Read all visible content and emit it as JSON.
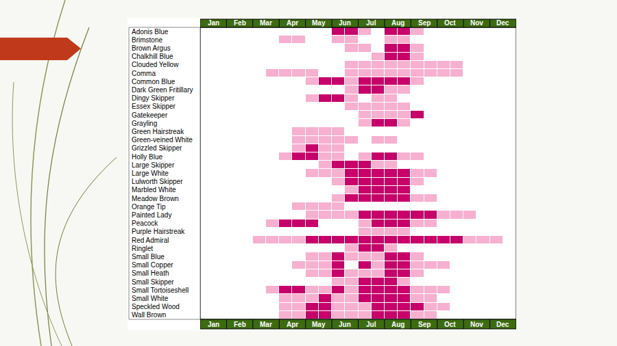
{
  "chart_data": {
    "type": "heatmap",
    "x": [
      "Jan",
      "Feb",
      "Mar",
      "Apr",
      "May",
      "Jun",
      "Jul",
      "Aug",
      "Sep",
      "Oct",
      "Nov",
      "Dec"
    ],
    "categories": [
      "Adonis Blue",
      "Brimstone",
      "Brown Argus",
      "Chalkhill Blue",
      "Clouded Yellow",
      "Comma",
      "Common Blue",
      "Dark Green Fritillary",
      "Dingy Skipper",
      "Essex Skipper",
      "Gatekeeper",
      "Grayling",
      "Green Hairstreak",
      "Green-veined White",
      "Grizzled Skipper",
      "Holly Blue",
      "Large Skipper",
      "Large White",
      "Lulworth Skipper",
      "Marbled White",
      "Meadow Brown",
      "Orange Tip",
      "Painted Lady",
      "Peacock",
      "Purple Hairstreak",
      "Red Admiral",
      "Ringlet",
      "Small Blue",
      "Small Copper",
      "Small Heath",
      "Small Skipper",
      "Small Tortoiseshell",
      "Small White",
      "Speckled Wood",
      "Wall Brown"
    ],
    "cells": [
      [
        0,
        0,
        0,
        0,
        0,
        0,
        0,
        0,
        0,
        0,
        2,
        2,
        1,
        0,
        2,
        2,
        1,
        0,
        0,
        0,
        0,
        0,
        0,
        0
      ],
      [
        0,
        0,
        0,
        0,
        0,
        0,
        1,
        1,
        0,
        0,
        1,
        1,
        0,
        0,
        1,
        1,
        0,
        0,
        0,
        0,
        0,
        0,
        0,
        0
      ],
      [
        0,
        0,
        0,
        0,
        0,
        0,
        0,
        0,
        0,
        0,
        0,
        1,
        1,
        0,
        2,
        2,
        1,
        0,
        0,
        0,
        0,
        0,
        0,
        0
      ],
      [
        0,
        0,
        0,
        0,
        0,
        0,
        0,
        0,
        0,
        0,
        0,
        0,
        0,
        1,
        2,
        2,
        1,
        0,
        0,
        0,
        0,
        0,
        0,
        0
      ],
      [
        0,
        0,
        0,
        0,
        0,
        0,
        0,
        0,
        0,
        0,
        0,
        1,
        1,
        1,
        1,
        1,
        1,
        1,
        1,
        1,
        0,
        0,
        0,
        0
      ],
      [
        0,
        0,
        0,
        0,
        0,
        1,
        1,
        1,
        1,
        0,
        0,
        1,
        1,
        1,
        1,
        1,
        1,
        1,
        1,
        1,
        0,
        0,
        0,
        0
      ],
      [
        0,
        0,
        0,
        0,
        0,
        0,
        0,
        0,
        1,
        2,
        2,
        1,
        2,
        2,
        2,
        2,
        1,
        0,
        0,
        0,
        0,
        0,
        0,
        0
      ],
      [
        0,
        0,
        0,
        0,
        0,
        0,
        0,
        0,
        0,
        0,
        0,
        1,
        2,
        2,
        1,
        1,
        0,
        0,
        0,
        0,
        0,
        0,
        0,
        0
      ],
      [
        0,
        0,
        0,
        0,
        0,
        0,
        0,
        0,
        1,
        2,
        2,
        1,
        0,
        1,
        1,
        0,
        0,
        0,
        0,
        0,
        0,
        0,
        0,
        0
      ],
      [
        0,
        0,
        0,
        0,
        0,
        0,
        0,
        0,
        0,
        0,
        0,
        1,
        1,
        1,
        1,
        1,
        0,
        0,
        0,
        0,
        0,
        0,
        0,
        0
      ],
      [
        0,
        0,
        0,
        0,
        0,
        0,
        0,
        0,
        0,
        0,
        0,
        0,
        1,
        1,
        1,
        1,
        2,
        0,
        0,
        0,
        0,
        0,
        0,
        0
      ],
      [
        0,
        0,
        0,
        0,
        0,
        0,
        0,
        0,
        0,
        0,
        0,
        0,
        1,
        2,
        2,
        1,
        0,
        0,
        0,
        0,
        0,
        0,
        0,
        0
      ],
      [
        0,
        0,
        0,
        0,
        0,
        0,
        0,
        1,
        1,
        1,
        1,
        0,
        0,
        0,
        0,
        0,
        0,
        0,
        0,
        0,
        0,
        0,
        0,
        0
      ],
      [
        0,
        0,
        0,
        0,
        0,
        0,
        0,
        1,
        1,
        1,
        1,
        1,
        0,
        1,
        1,
        0,
        0,
        0,
        0,
        0,
        0,
        0,
        0,
        0
      ],
      [
        0,
        0,
        0,
        0,
        0,
        0,
        0,
        1,
        2,
        1,
        1,
        0,
        0,
        0,
        0,
        0,
        0,
        0,
        0,
        0,
        0,
        0,
        0,
        0
      ],
      [
        0,
        0,
        0,
        0,
        0,
        0,
        1,
        2,
        2,
        1,
        1,
        0,
        1,
        2,
        2,
        1,
        1,
        0,
        0,
        0,
        0,
        0,
        0,
        0
      ],
      [
        0,
        0,
        0,
        0,
        0,
        0,
        0,
        0,
        0,
        1,
        2,
        2,
        2,
        1,
        1,
        0,
        0,
        0,
        0,
        0,
        0,
        0,
        0,
        0
      ],
      [
        0,
        0,
        0,
        0,
        0,
        0,
        0,
        0,
        1,
        1,
        1,
        2,
        2,
        2,
        2,
        2,
        1,
        1,
        0,
        0,
        0,
        0,
        0,
        0
      ],
      [
        0,
        0,
        0,
        0,
        0,
        0,
        0,
        0,
        0,
        0,
        1,
        2,
        2,
        2,
        2,
        2,
        1,
        0,
        0,
        0,
        0,
        0,
        0,
        0
      ],
      [
        0,
        0,
        0,
        0,
        0,
        0,
        0,
        0,
        0,
        0,
        0,
        1,
        2,
        2,
        2,
        2,
        0,
        0,
        0,
        0,
        0,
        0,
        0,
        0
      ],
      [
        0,
        0,
        0,
        0,
        0,
        0,
        0,
        0,
        0,
        0,
        1,
        2,
        2,
        2,
        2,
        2,
        1,
        1,
        0,
        0,
        0,
        0,
        0,
        0
      ],
      [
        0,
        0,
        0,
        0,
        0,
        0,
        0,
        1,
        1,
        1,
        1,
        0,
        0,
        0,
        0,
        0,
        0,
        0,
        0,
        0,
        0,
        0,
        0,
        0
      ],
      [
        0,
        0,
        0,
        0,
        0,
        0,
        0,
        0,
        1,
        1,
        1,
        1,
        2,
        2,
        2,
        2,
        2,
        2,
        1,
        1,
        1,
        0,
        0,
        0
      ],
      [
        0,
        0,
        0,
        0,
        0,
        1,
        2,
        2,
        2,
        0,
        0,
        0,
        1,
        2,
        2,
        2,
        1,
        1,
        0,
        0,
        0,
        0,
        0,
        0
      ],
      [
        0,
        0,
        0,
        0,
        0,
        0,
        0,
        0,
        0,
        0,
        0,
        0,
        1,
        1,
        1,
        1,
        0,
        0,
        0,
        0,
        0,
        0,
        0,
        0
      ],
      [
        0,
        0,
        0,
        0,
        1,
        1,
        1,
        1,
        2,
        2,
        2,
        2,
        2,
        2,
        2,
        2,
        2,
        2,
        2,
        2,
        1,
        1,
        1,
        0
      ],
      [
        0,
        0,
        0,
        0,
        0,
        0,
        0,
        0,
        0,
        0,
        0,
        1,
        2,
        2,
        1,
        0,
        0,
        0,
        0,
        0,
        0,
        0,
        0,
        0
      ],
      [
        0,
        0,
        0,
        0,
        0,
        0,
        0,
        0,
        1,
        1,
        2,
        1,
        1,
        1,
        2,
        2,
        1,
        0,
        0,
        0,
        0,
        0,
        0,
        0
      ],
      [
        0,
        0,
        0,
        0,
        0,
        0,
        0,
        1,
        1,
        1,
        2,
        0,
        2,
        1,
        2,
        2,
        1,
        1,
        1,
        0,
        0,
        0,
        0,
        0
      ],
      [
        0,
        0,
        0,
        0,
        0,
        0,
        0,
        0,
        1,
        1,
        2,
        1,
        1,
        1,
        2,
        2,
        1,
        0,
        0,
        0,
        0,
        0,
        0,
        0
      ],
      [
        0,
        0,
        0,
        0,
        0,
        0,
        0,
        0,
        0,
        0,
        1,
        1,
        2,
        2,
        2,
        1,
        0,
        0,
        0,
        0,
        0,
        0,
        0,
        0
      ],
      [
        0,
        0,
        0,
        0,
        0,
        1,
        2,
        2,
        1,
        1,
        2,
        1,
        2,
        2,
        2,
        2,
        1,
        1,
        1,
        0,
        0,
        0,
        0,
        0
      ],
      [
        0,
        0,
        0,
        0,
        0,
        0,
        1,
        1,
        1,
        2,
        1,
        1,
        2,
        2,
        2,
        2,
        1,
        1,
        0,
        0,
        0,
        0,
        0,
        0
      ],
      [
        0,
        0,
        0,
        0,
        0,
        0,
        1,
        1,
        2,
        2,
        1,
        1,
        1,
        2,
        2,
        2,
        2,
        1,
        1,
        0,
        0,
        0,
        0,
        0
      ],
      [
        0,
        0,
        0,
        0,
        0,
        0,
        1,
        1,
        2,
        2,
        1,
        1,
        1,
        2,
        2,
        2,
        1,
        1,
        0,
        0,
        0,
        0,
        0,
        0
      ]
    ],
    "colors": [
      "#ffffff",
      "#f7b0d0",
      "#c8006a"
    ],
    "grid": true
  }
}
